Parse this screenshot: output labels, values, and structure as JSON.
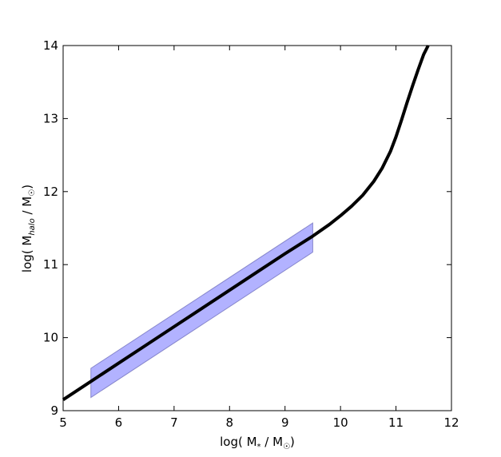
{
  "chart_data": {
    "type": "line",
    "title": "",
    "xlabel": "log( M* / M☉)",
    "ylabel": "log( Mhalo / M☉)",
    "xlabel_parts": {
      "pre": "log( M",
      "sub": "*",
      "post": " / M",
      "sun": "☉",
      "close": ")"
    },
    "ylabel_parts": {
      "pre": "log( M",
      "sub": "halo",
      "post": " / M",
      "sun": "☉",
      "close": ")"
    },
    "xlim": [
      5,
      12
    ],
    "ylim": [
      9,
      14
    ],
    "xticks": [
      5,
      6,
      7,
      8,
      9,
      10,
      11,
      12
    ],
    "yticks": [
      9,
      10,
      11,
      12,
      13,
      14
    ],
    "grid": false,
    "legend": "none",
    "series": [
      {
        "kind": "line",
        "color": "#000000",
        "x": [
          5.0,
          5.5,
          6.0,
          6.5,
          7.0,
          7.5,
          8.0,
          8.5,
          9.0,
          9.5,
          9.8,
          10.0,
          10.2,
          10.4,
          10.6,
          10.75,
          10.9,
          11.0,
          11.1,
          11.2,
          11.3,
          11.4,
          11.5,
          11.58
        ],
        "y": [
          9.15,
          9.4,
          9.65,
          9.9,
          10.15,
          10.4,
          10.65,
          10.9,
          11.15,
          11.39,
          11.55,
          11.67,
          11.8,
          11.95,
          12.14,
          12.32,
          12.55,
          12.75,
          12.98,
          13.22,
          13.45,
          13.67,
          13.88,
          14.0
        ]
      },
      {
        "kind": "band",
        "color": "#0000ff",
        "opacity": 0.3,
        "x": [
          5.5,
          9.5
        ],
        "y_lower": [
          9.18,
          11.17
        ],
        "y_upper": [
          9.58,
          11.57
        ]
      }
    ]
  }
}
